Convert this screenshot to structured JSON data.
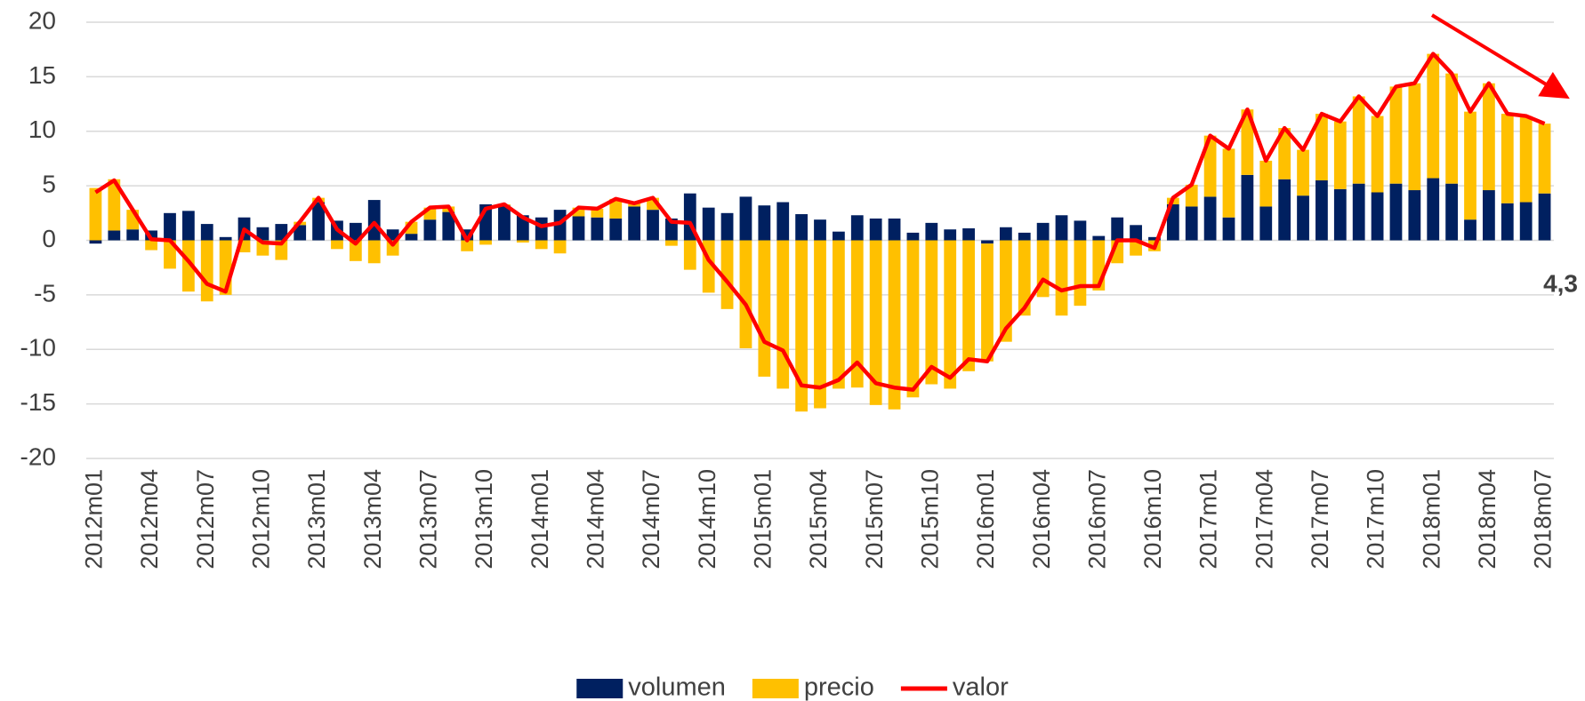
{
  "chart_data": {
    "type": "bar",
    "categories": [
      "2012m01",
      null,
      null,
      "2012m04",
      null,
      null,
      "2012m07",
      null,
      null,
      "2012m10",
      null,
      null,
      "2013m01",
      null,
      null,
      "2013m04",
      null,
      null,
      "2013m07",
      null,
      null,
      "2013m10",
      null,
      null,
      "2014m01",
      null,
      null,
      "2014m04",
      null,
      null,
      "2014m07",
      null,
      null,
      "2014m10",
      null,
      null,
      "2015m01",
      null,
      null,
      "2015m04",
      null,
      null,
      "2015m07",
      null,
      null,
      "2015m10",
      null,
      null,
      "2016m01",
      null,
      null,
      "2016m04",
      null,
      null,
      "2016m07",
      null,
      null,
      "2016m10",
      null,
      null,
      "2017m01",
      null,
      null,
      "2017m04",
      null,
      null,
      "2017m07",
      null,
      null,
      "2017m10",
      null,
      null,
      "2018m01",
      null,
      null,
      "2018m04",
      null,
      null,
      "2018m07"
    ],
    "series": [
      {
        "name": "volumen",
        "color": "#002060",
        "values": [
          -0.3,
          0.9,
          1.0,
          0.9,
          2.5,
          2.7,
          1.5,
          0.3,
          2.1,
          1.2,
          1.5,
          1.4,
          3.5,
          1.8,
          1.6,
          3.7,
          1.0,
          0.6,
          1.9,
          2.6,
          1.0,
          3.3,
          3.2,
          2.3,
          2.1,
          2.8,
          2.2,
          2.1,
          2.0,
          3.1,
          2.8,
          2.0,
          4.3,
          3.0,
          2.5,
          4.0,
          3.2,
          3.5,
          2.4,
          1.9,
          0.8,
          2.3,
          2.0,
          2.0,
          0.7,
          1.6,
          1.0,
          1.1,
          -0.3,
          1.2,
          0.7,
          1.6,
          2.3,
          1.8,
          0.4,
          2.1,
          1.4,
          0.3,
          3.3,
          3.1,
          4.0,
          2.1,
          6.0,
          3.1,
          5.6,
          4.1,
          5.5,
          4.7,
          5.2,
          4.4,
          5.2,
          4.6,
          5.7,
          5.2,
          1.9,
          4.6,
          3.4,
          3.5,
          4.3
        ]
      },
      {
        "name": "precio",
        "color": "#ffc000",
        "values": [
          4.8,
          4.7,
          1.8,
          -0.9,
          -2.6,
          -4.7,
          -5.6,
          -5.0,
          -1.1,
          -1.4,
          -1.8,
          0.3,
          0.4,
          -0.8,
          -1.9,
          -2.1,
          -1.4,
          1.1,
          1.1,
          0.5,
          -1.0,
          -0.4,
          0.1,
          -0.2,
          -0.8,
          -1.2,
          0.8,
          0.8,
          1.8,
          0.3,
          1.1,
          -0.5,
          -2.7,
          -4.8,
          -6.3,
          -9.9,
          -12.5,
          -13.6,
          -15.7,
          -15.4,
          -13.6,
          -13.5,
          -15.1,
          -15.5,
          -14.4,
          -13.2,
          -13.6,
          -12.0,
          -10.8,
          -9.3,
          -6.9,
          -5.2,
          -6.9,
          -6.0,
          -4.6,
          -2.1,
          -1.4,
          -1.0,
          0.6,
          2.0,
          5.6,
          6.3,
          6.0,
          4.2,
          4.7,
          4.2,
          6.1,
          6.2,
          8.0,
          7.0,
          8.9,
          9.8,
          11.4,
          10.1,
          9.9,
          9.8,
          8.2,
          7.9,
          6.4
        ]
      },
      {
        "name": "valor",
        "color": "#ff0000",
        "type": "line",
        "values": [
          4.4,
          5.5,
          2.8,
          0.1,
          0.0,
          -1.9,
          -4.0,
          -4.7,
          1.0,
          -0.2,
          -0.3,
          1.7,
          3.9,
          1.0,
          -0.3,
          1.6,
          -0.4,
          1.7,
          3.0,
          3.1,
          0.0,
          2.9,
          3.3,
          2.1,
          1.3,
          1.6,
          3.0,
          2.9,
          3.8,
          3.4,
          3.9,
          1.7,
          1.6,
          -1.8,
          -3.8,
          -5.9,
          -9.3,
          -10.1,
          -13.3,
          -13.5,
          -12.8,
          -11.2,
          -13.1,
          -13.5,
          -13.7,
          -11.6,
          -12.6,
          -10.9,
          -11.1,
          -8.1,
          -6.2,
          -3.6,
          -4.6,
          -4.2,
          -4.2,
          0.0,
          0.0,
          -0.7,
          3.9,
          5.1,
          9.6,
          8.4,
          12.0,
          7.3,
          10.3,
          8.3,
          11.6,
          10.9,
          13.2,
          11.4,
          14.1,
          14.4,
          17.1,
          15.3,
          11.8,
          14.4,
          11.6,
          11.4,
          10.7
        ]
      }
    ],
    "annotation": "4,3",
    "ylim": [
      -20,
      20
    ],
    "yticks": [
      -20,
      -15,
      -10,
      -5,
      0,
      5,
      10,
      15,
      20
    ],
    "grid": true,
    "legend": "bottom"
  }
}
